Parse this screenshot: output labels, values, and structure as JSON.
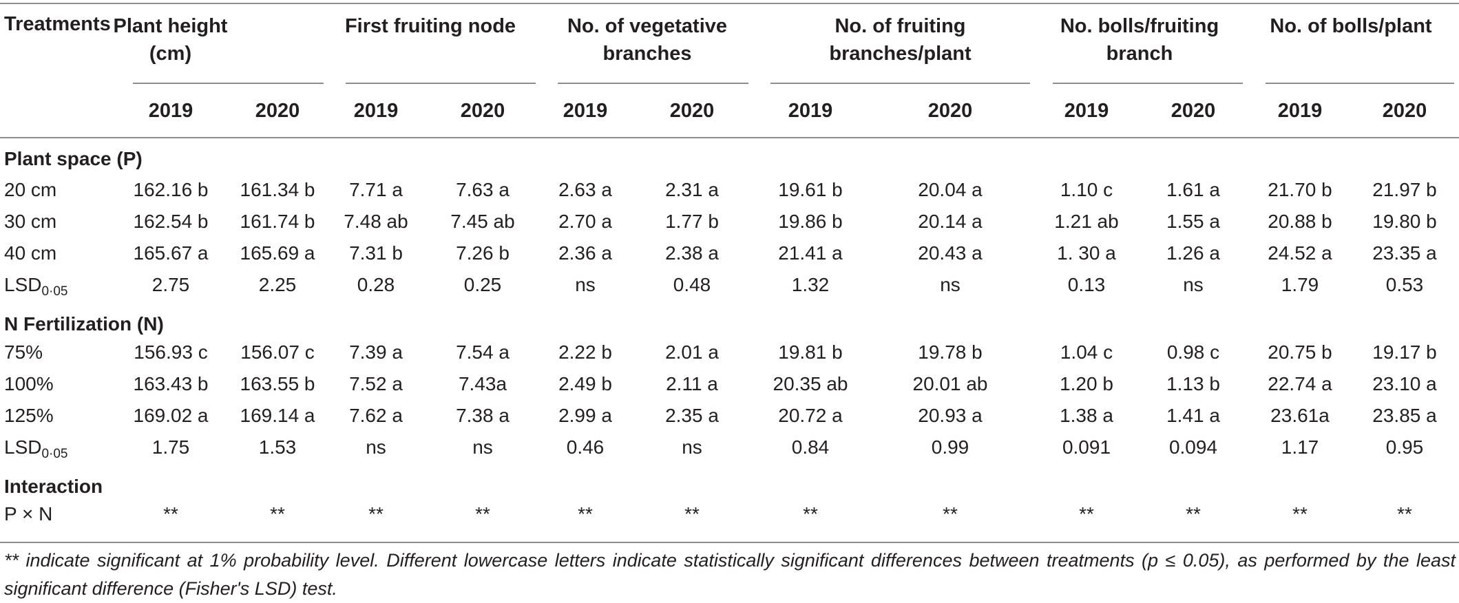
{
  "header": {
    "treatments": "Treatments",
    "groups": [
      {
        "label": "Plant height (cm)"
      },
      {
        "label": "First fruiting node"
      },
      {
        "label": "No. of vegetative branches"
      },
      {
        "label": "No. of fruiting branches/plant"
      },
      {
        "label": "No. bolls/fruiting branch"
      },
      {
        "label": "No. of bolls/plant"
      }
    ],
    "years": [
      "2019",
      "2020",
      "2019",
      "2020",
      "2019",
      "2020",
      "2019",
      "2020",
      "2019",
      "2020",
      "2019",
      "2020"
    ]
  },
  "sections": [
    {
      "title": "Plant space (P)",
      "rows": [
        {
          "label": "20 cm",
          "values": [
            "162.16 b",
            "161.34 b",
            "7.71 a",
            "7.63 a",
            "2.63 a",
            "2.31 a",
            "19.61 b",
            "20.04 a",
            "1.10 c",
            "1.61 a",
            "21.70 b",
            "21.97 b"
          ]
        },
        {
          "label": "30 cm",
          "values": [
            "162.54 b",
            "161.74 b",
            "7.48 ab",
            "7.45 ab",
            "2.70 a",
            "1.77 b",
            "19.86 b",
            "20.14 a",
            "1.21 ab",
            "1.55 a",
            "20.88 b",
            "19.80 b"
          ]
        },
        {
          "label": "40 cm",
          "values": [
            "165.67 a",
            "165.69 a",
            "7.31 b",
            "7.26 b",
            "2.36 a",
            "2.38 a",
            "21.41 a",
            "20.43 a",
            "1. 30 a",
            "1.26 a",
            "24.52 a",
            "23.35 a"
          ]
        },
        {
          "label": "LSD",
          "label_sub": "0·05",
          "values": [
            "2.75",
            "2.25",
            "0.28",
            "0.25",
            "ns",
            "0.48",
            "1.32",
            "ns",
            "0.13",
            "ns",
            "1.79",
            "0.53"
          ]
        }
      ]
    },
    {
      "title": "N Fertilization (N)",
      "rows": [
        {
          "label": "75%",
          "values": [
            "156.93 c",
            "156.07 c",
            "7.39 a",
            "7.54 a",
            "2.22 b",
            "2.01 a",
            "19.81 b",
            "19.78 b",
            "1.04 c",
            "0.98 c",
            "20.75 b",
            "19.17 b"
          ]
        },
        {
          "label": "100%",
          "values": [
            "163.43 b",
            "163.55 b",
            "7.52 a",
            "7.43a",
            "2.49 b",
            "2.11 a",
            "20.35 ab",
            "20.01 ab",
            "1.20 b",
            "1.13 b",
            "22.74 a",
            "23.10 a"
          ]
        },
        {
          "label": "125%",
          "values": [
            "169.02 a",
            "169.14 a",
            "7.62 a",
            "7.38 a",
            "2.99 a",
            "2.35 a",
            "20.72 a",
            "20.93 a",
            "1.38 a",
            "1.41 a",
            "23.61a",
            "23.85 a"
          ]
        },
        {
          "label": "LSD",
          "label_sub": "0·05",
          "values": [
            "1.75",
            "1.53",
            "ns",
            "ns",
            "0.46",
            "ns",
            "0.84",
            "0.99",
            "0.091",
            "0.094",
            "1.17",
            "0.95"
          ]
        }
      ]
    },
    {
      "title": "Interaction",
      "rows": [
        {
          "label": "P × N",
          "values": [
            "**",
            "**",
            "**",
            "**",
            "**",
            "**",
            "**",
            "**",
            "**",
            "**",
            "**",
            "**"
          ]
        }
      ]
    }
  ],
  "footnote": "** indicate significant at 1% probability level. Different lowercase letters indicate statistically significant differences between treatments (p ≤ 0.05), as performed by the least significant difference (Fisher's LSD) test."
}
